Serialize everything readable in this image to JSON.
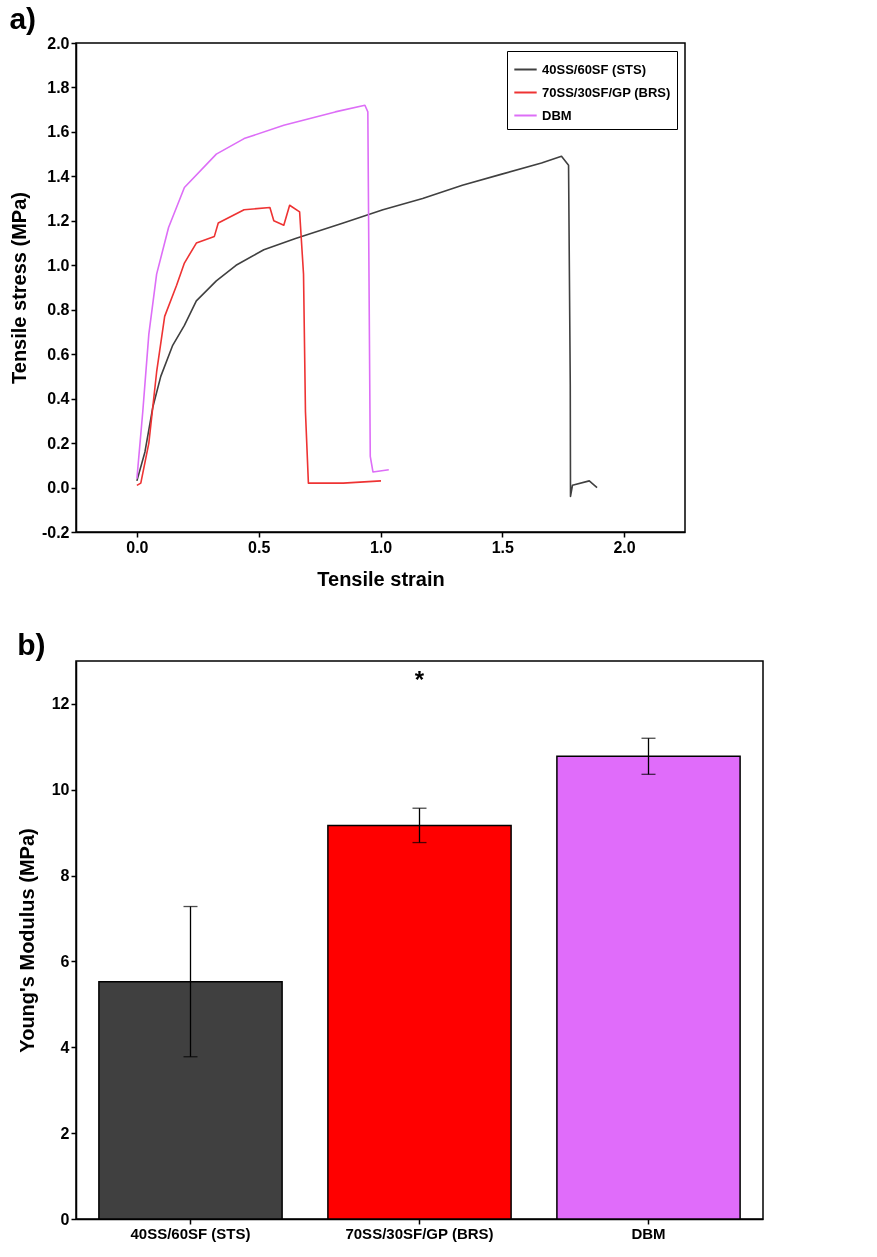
{
  "chart_data": [
    {
      "type": "line",
      "title": "a)",
      "xlabel": "Tensile strain",
      "ylabel": "Tensile stress (MPa)",
      "xlim": [
        -0.25,
        2.25
      ],
      "xticks": [
        {
          "value": 0,
          "label": "0.0"
        },
        0.5,
        {
          "value": 1,
          "label": "1.0"
        },
        1.5,
        {
          "value": 2,
          "label": "2.0"
        }
      ],
      "ylim": [
        -0.2,
        2.0
      ],
      "yticks": [
        -0.2,
        {
          "value": 0,
          "label": "0.0"
        },
        0.2,
        0.4,
        0.6,
        0.8,
        {
          "value": 1,
          "label": "1.0"
        },
        1.2,
        1.4,
        1.6,
        1.8,
        {
          "value": 2,
          "label": "2.0"
        }
      ],
      "grid": false,
      "legend": "top right",
      "line_style": "solid",
      "series": [
        {
          "name": "40SS/60SF (STS)",
          "color": "#404040",
          "x": [
            0,
            0.033,
            0.065,
            0.098,
            0.147,
            0.195,
            0.244,
            0.326,
            0.407,
            0.521,
            0.651,
            0.847,
            1.01,
            1.173,
            1.336,
            1.498,
            1.661,
            1.743,
            1.772,
            1.779,
            1.78,
            1.788,
            1.857,
            1.889
          ],
          "values": [
            0.03,
            0.16,
            0.36,
            0.5,
            0.64,
            0.73,
            0.84,
            0.93,
            1.0,
            1.07,
            1.12,
            1.19,
            1.25,
            1.3,
            1.36,
            1.41,
            1.46,
            1.49,
            1.45,
            0.46,
            -0.04,
            0.01,
            0.03,
            0.0
          ]
        },
        {
          "name": "70SS/30SF/GP (BRS)",
          "color": "#ee3333",
          "x": [
            0,
            0.016,
            0.049,
            0.081,
            0.114,
            0.163,
            0.195,
            0.244,
            0.318,
            0.334,
            0.44,
            0.546,
            0.562,
            0.603,
            0.627,
            0.668,
            0.684,
            0.692,
            0.704,
            0.847,
            1.002
          ],
          "values": [
            0.01,
            0.02,
            0.2,
            0.52,
            0.77,
            0.91,
            1.01,
            1.1,
            1.13,
            1.19,
            1.25,
            1.26,
            1.2,
            1.18,
            1.27,
            1.24,
            0.96,
            0.34,
            0.02,
            0.02,
            0.03
          ]
        },
        {
          "name": "DBM",
          "color": "#dd6ef7",
          "x": [
            0,
            0.024,
            0.049,
            0.081,
            0.13,
            0.195,
            0.326,
            0.44,
            0.603,
            0.814,
            0.936,
            0.948,
            0.958,
            0.969,
            1.034
          ],
          "values": [
            0.04,
            0.34,
            0.69,
            0.96,
            1.17,
            1.35,
            1.5,
            1.57,
            1.63,
            1.69,
            1.72,
            1.69,
            0.14,
            0.07,
            0.08
          ]
        }
      ]
    },
    {
      "type": "bar",
      "title": "b)",
      "ylabel": "Young's Modulus (MPa)",
      "categories": [
        "40SS/60SF (STS)",
        "70SS/30SF/GP (BRS)",
        "DBM"
      ],
      "values": [
        5.53,
        9.17,
        10.78
      ],
      "errors": [
        1.75,
        0.4,
        0.42
      ],
      "colors": [
        "#404040",
        "#ff0000",
        "#e06cfa"
      ],
      "ylim": [
        0,
        13
      ],
      "yticks": [
        0,
        2,
        4,
        6,
        8,
        10,
        12
      ],
      "grid": false,
      "annotations": [
        "*"
      ]
    }
  ]
}
